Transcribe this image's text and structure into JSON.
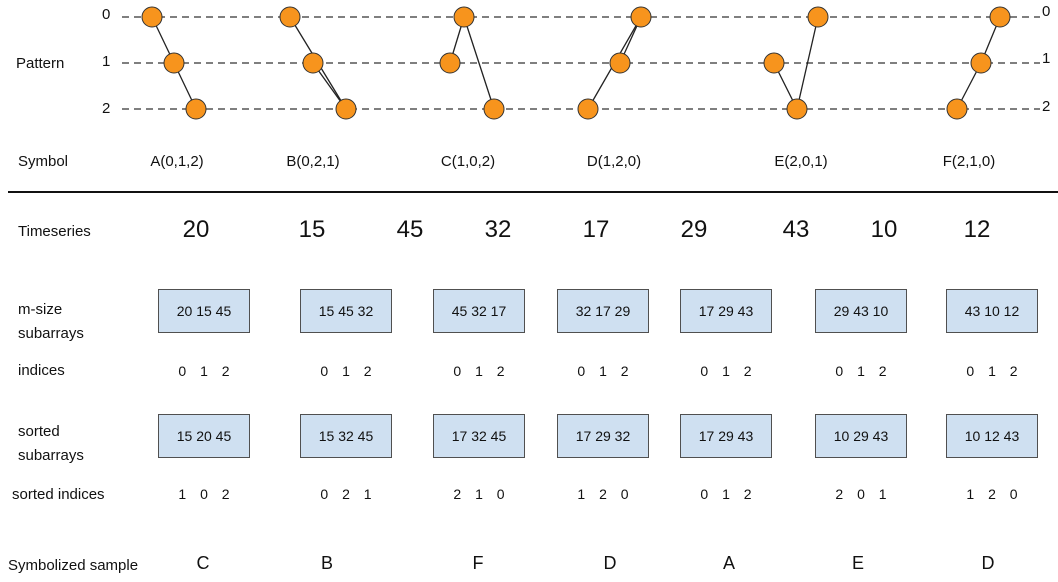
{
  "pattern_section": {
    "label": "Pattern",
    "levels": [
      "0",
      "1",
      "2"
    ],
    "symbol_label": "Symbol",
    "patterns": [
      {
        "symbol": "A(0,1,2)",
        "order": [
          0,
          1,
          2
        ]
      },
      {
        "symbol": "B(0,2,1)",
        "order": [
          0,
          2,
          1
        ]
      },
      {
        "symbol": "C(1,0,2)",
        "order": [
          1,
          0,
          2
        ]
      },
      {
        "symbol": "D(1,2,0)",
        "order": [
          1,
          2,
          0
        ]
      },
      {
        "symbol": "E(2,0,1)",
        "order": [
          2,
          0,
          1
        ]
      },
      {
        "symbol": "F(2,1,0)",
        "order": [
          2,
          1,
          0
        ]
      }
    ]
  },
  "timeseries": {
    "label": "Timeseries",
    "values": [
      "20",
      "15",
      "45",
      "32",
      "17",
      "29",
      "43",
      "10",
      "12"
    ]
  },
  "subarrays": {
    "label_line1": "m-size",
    "label_line2": "subarrays",
    "items": [
      "20 15 45",
      "15 45 32",
      "45 32 17",
      "32 17 29",
      "17 29 43",
      "29 43 10",
      "43 10 12"
    ]
  },
  "indices": {
    "label": "indices",
    "items": [
      "0 1 2",
      "0 1 2",
      "0 1 2",
      "0 1 2",
      "0 1 2",
      "0 1 2",
      "0 1 2"
    ]
  },
  "sorted_subarrays": {
    "label_line1": "sorted",
    "label_line2": "subarrays",
    "items": [
      "15 20 45",
      "15 32 45",
      "17 32 45",
      "17 29 32",
      "17 29 43",
      "10 29 43",
      "10 12 43"
    ]
  },
  "sorted_indices": {
    "label": "sorted indices",
    "items": [
      "1 0 2",
      "0 2 1",
      "2 1 0",
      "1 2 0",
      "0 1 2",
      "2 0 1",
      "1 2 0"
    ]
  },
  "symbolized": {
    "label": "Symbolized sample",
    "items": [
      "C",
      "B",
      "F",
      "D",
      "A",
      "E",
      "D"
    ]
  },
  "colors": {
    "node_fill": "#f7941d",
    "node_stroke": "#333333",
    "box_fill": "#cfe0f1",
    "dash_line": "#333333"
  }
}
